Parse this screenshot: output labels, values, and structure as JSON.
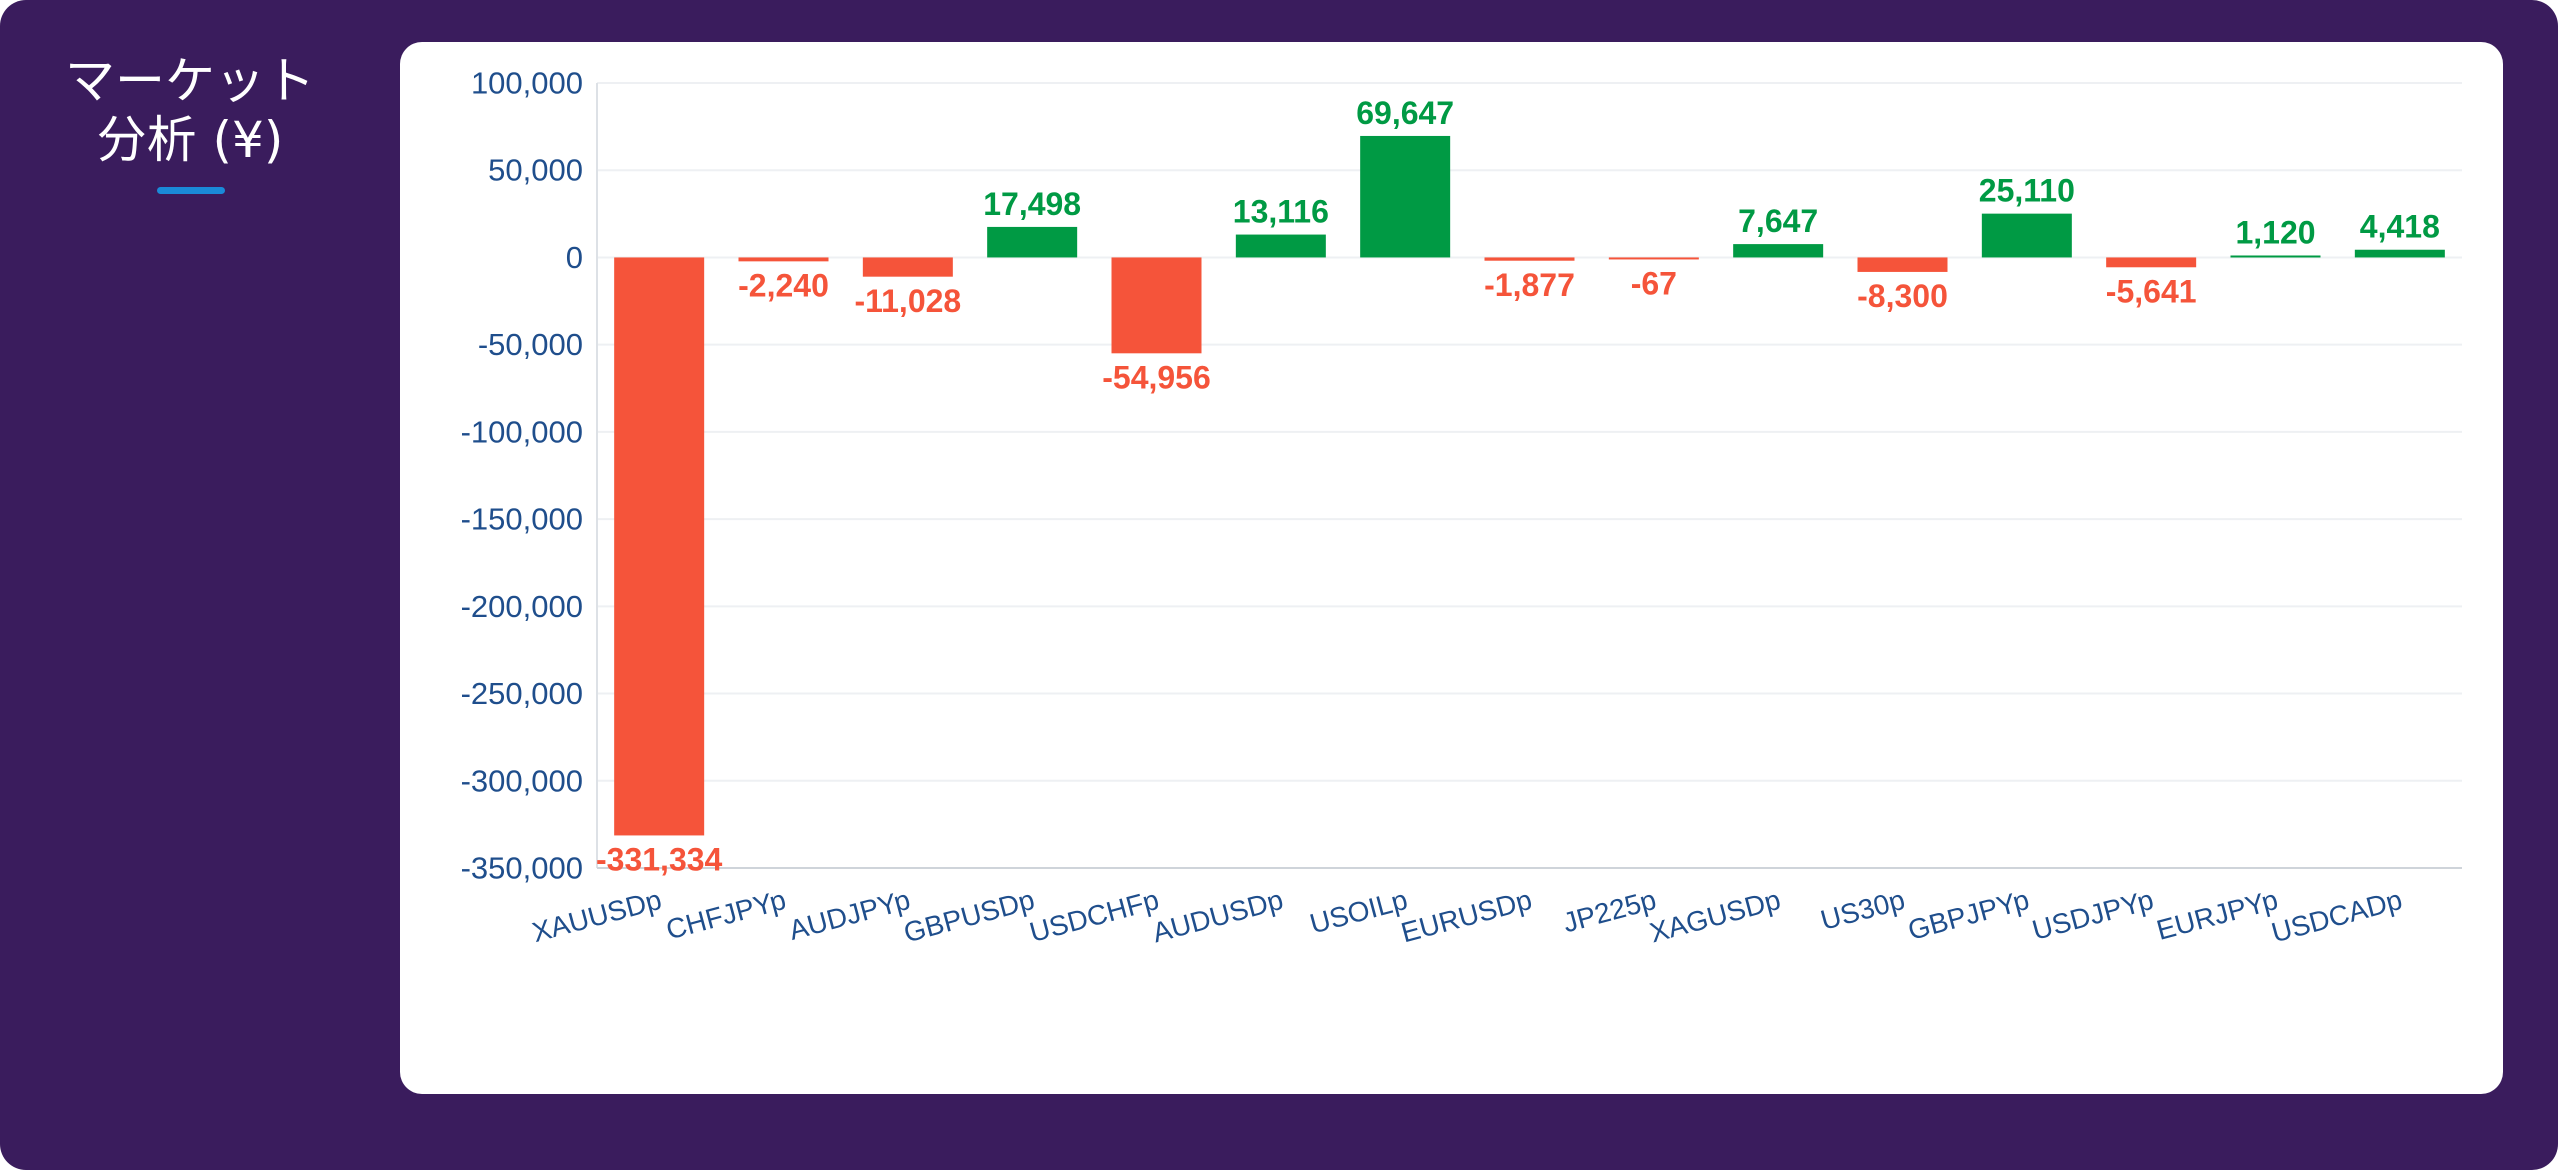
{
  "header": {
    "title_line1": "マーケット",
    "title_line2": "分析 (¥)"
  },
  "colors": {
    "background": "#3a1c5d",
    "card": "#ffffff",
    "positive": "#009a44",
    "negative": "#f5543a",
    "axis_text": "#1f4e8c",
    "underline_accent": "#1a8ad8"
  },
  "chart_data": {
    "type": "bar",
    "title": "マーケット 分析 (¥)",
    "categories": [
      "XAUUSDp",
      "CHFJPYp",
      "AUDJPYp",
      "GBPUSDp",
      "USDCHFp",
      "AUDUSDp",
      "USOILp",
      "EURUSDp",
      "JP225p",
      "XAGUSDp",
      "US30p",
      "GBPJPYp",
      "USDJPYp",
      "EURJPYp",
      "USDCADp"
    ],
    "values": [
      -331334,
      -2240,
      -11028,
      17498,
      -54956,
      13116,
      69647,
      -1877,
      -67,
      7647,
      -8300,
      25110,
      -5641,
      1120,
      4418
    ],
    "value_labels": [
      "-331,334",
      "-2,240",
      "-11,028",
      "17,498",
      "-54,956",
      "13,116",
      "69,647",
      "-1,877",
      "-67",
      "7,647",
      "-8,300",
      "25,110",
      "-5,641",
      "1,120",
      "4,418"
    ],
    "y_ticks": [
      100000,
      50000,
      0,
      -50000,
      -100000,
      -150000,
      -200000,
      -250000,
      -300000,
      -350000
    ],
    "y_tick_labels": [
      "100,000",
      "50,000",
      "0",
      "-50,000",
      "-100,000",
      "-150,000",
      "-200,000",
      "-250,000",
      "-300,000",
      "-350,000"
    ],
    "ylim": [
      -350000,
      100000
    ],
    "xlabel": "",
    "ylabel": "",
    "grid": true,
    "legend": "none"
  }
}
